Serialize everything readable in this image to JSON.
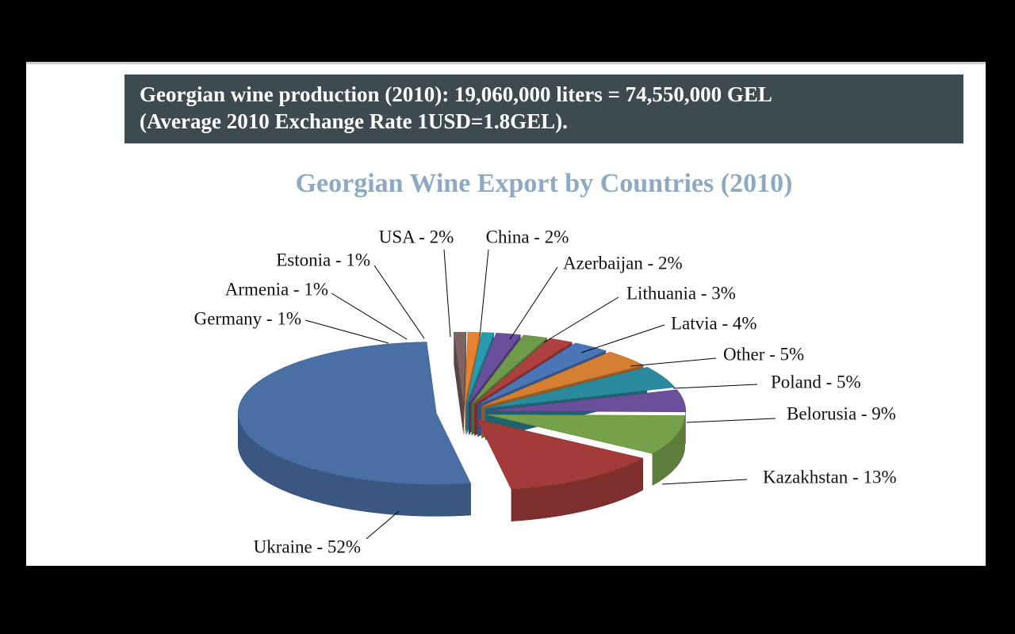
{
  "header": {
    "lines": [
      "Georgian wine production (2010): 19,060,000 liters = 74,550,000 GEL",
      "(Average 2010 Exchange Rate 1USD=1.8GEL)."
    ]
  },
  "chart_data": {
    "type": "pie",
    "title": "Georgian Wine Export by Countries (2010)",
    "values": [
      52,
      1,
      1,
      1,
      2,
      2,
      2,
      3,
      4,
      5,
      5,
      9,
      13
    ],
    "value_labels": [
      "Ukraine - 52%",
      "Germany - 1%",
      "Armenia - 1%",
      "Estonia - 1%",
      "USA - 2%",
      "China - 2%",
      "Azerbaijan - 2%",
      "Lithuania - 3%",
      "Latvia - 4%",
      "Other - 5%",
      "Poland - 5%",
      "Belorusia - 9%",
      "Kazakhstan - 13%"
    ],
    "colors": [
      "#4a6fa5",
      "#7d6463",
      "#e5822e",
      "#2a9ab0",
      "#6a4f9c",
      "#6e9a4a",
      "#b04040",
      "#4a76b8",
      "#d57f33",
      "#2b8a9e",
      "#6b4f9a",
      "#77a04b",
      "#a33b3b"
    ]
  }
}
